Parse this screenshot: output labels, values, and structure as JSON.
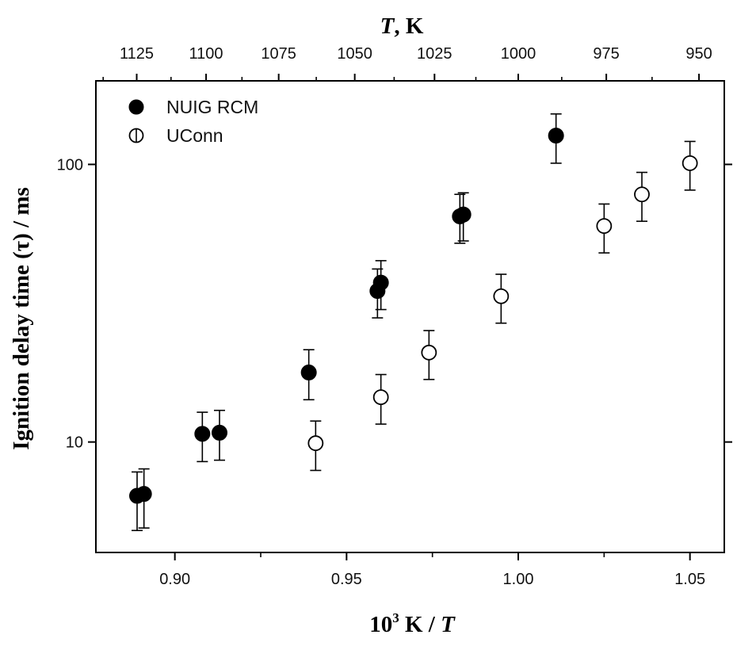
{
  "chart_data": {
    "type": "scatter",
    "title": "",
    "xlabel": "10³ K / T",
    "xlabel_parts": {
      "base": "10",
      "sup": "3",
      "mid": " K / ",
      "var": "T"
    },
    "ylabel": "Ignition delay time (τ) / ms",
    "top_xlabel": "T, K",
    "top_xlabel_parts": {
      "var": "T",
      "rest": ", K"
    },
    "xlim": [
      0.877,
      1.06
    ],
    "ylim": [
      4,
      200
    ],
    "yscale": "log",
    "x_ticks": [
      0.9,
      0.95,
      1.0,
      1.05
    ],
    "x_tick_labels": [
      "0.90",
      "0.95",
      "1.00",
      "1.05"
    ],
    "y_ticks": [
      10,
      100
    ],
    "y_tick_labels": [
      "10",
      "100"
    ],
    "top_ticks_K": [
      1125,
      1100,
      1075,
      1050,
      1025,
      1000,
      975,
      950
    ],
    "top_tick_labels": [
      "1125",
      "1100",
      "1075",
      "1050",
      "1025",
      "1000",
      "975",
      "950"
    ],
    "legend_position": "top-left",
    "series": [
      {
        "name": "NUIG RCM",
        "marker": "filled-circle",
        "points": [
          {
            "x": 0.889,
            "y": 6.4,
            "err_low": 4.8,
            "err_high": 7.8
          },
          {
            "x": 0.891,
            "y": 6.5,
            "err_low": 4.9,
            "err_high": 8.0
          },
          {
            "x": 0.908,
            "y": 10.7,
            "err_low": 8.5,
            "err_high": 12.8
          },
          {
            "x": 0.913,
            "y": 10.8,
            "err_low": 8.6,
            "err_high": 13.0
          },
          {
            "x": 0.939,
            "y": 17.8,
            "err_low": 14.2,
            "err_high": 21.5
          },
          {
            "x": 0.959,
            "y": 35.0,
            "err_low": 28.0,
            "err_high": 42.0
          },
          {
            "x": 0.96,
            "y": 37.5,
            "err_low": 30.0,
            "err_high": 45.0
          },
          {
            "x": 0.983,
            "y": 65.0,
            "err_low": 52.0,
            "err_high": 78.0
          },
          {
            "x": 0.984,
            "y": 66.0,
            "err_low": 53.0,
            "err_high": 79.0
          },
          {
            "x": 1.011,
            "y": 127.0,
            "err_low": 101.0,
            "err_high": 152.0
          }
        ]
      },
      {
        "name": "UConn",
        "marker": "open-circle",
        "points": [
          {
            "x": 0.941,
            "y": 9.9,
            "err_low": 7.9,
            "err_high": 11.9
          },
          {
            "x": 0.96,
            "y": 14.5,
            "err_low": 11.6,
            "err_high": 17.5
          },
          {
            "x": 0.974,
            "y": 21.0,
            "err_low": 16.8,
            "err_high": 25.2
          },
          {
            "x": 0.995,
            "y": 33.5,
            "err_low": 26.8,
            "err_high": 40.2
          },
          {
            "x": 1.025,
            "y": 60.0,
            "err_low": 48.0,
            "err_high": 72.0
          },
          {
            "x": 1.036,
            "y": 78.0,
            "err_low": 62.4,
            "err_high": 93.6
          },
          {
            "x": 1.05,
            "y": 101.0,
            "err_low": 80.8,
            "err_high": 121.0
          }
        ]
      }
    ]
  }
}
